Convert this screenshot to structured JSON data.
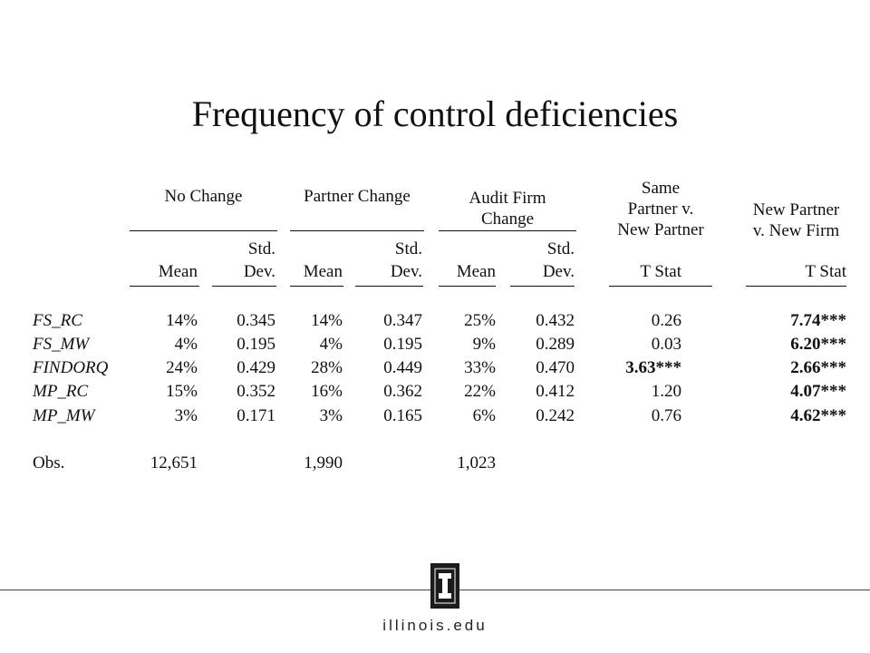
{
  "slide": {
    "title": "Frequency of control deficiencies"
  },
  "table": {
    "groups": [
      {
        "lines": [
          "No Change"
        ]
      },
      {
        "lines": [
          "Partner Change"
        ]
      },
      {
        "lines": [
          "Audit Firm",
          "Change"
        ]
      },
      {
        "lines": [
          "Same",
          "Partner v.",
          "New Partner"
        ]
      },
      {
        "lines": [
          "New Partner",
          "v. New Firm"
        ]
      }
    ],
    "columns": [
      {
        "lines": [
          "",
          "Mean"
        ]
      },
      {
        "lines": [
          "Std.",
          "Dev."
        ]
      },
      {
        "lines": [
          "",
          "Mean"
        ]
      },
      {
        "lines": [
          "Std.",
          "Dev."
        ]
      },
      {
        "lines": [
          "",
          "Mean"
        ]
      },
      {
        "lines": [
          "Std.",
          "Dev."
        ]
      },
      {
        "lines": [
          "",
          "T Stat"
        ]
      },
      {
        "lines": [
          "",
          "T Stat"
        ]
      }
    ],
    "rows": [
      {
        "label": "FS_RC",
        "cells": [
          "14%",
          "0.345",
          "14%",
          "0.347",
          "25%",
          "0.432",
          "0.26",
          "7.74***"
        ],
        "bold": [
          false,
          false,
          false,
          false,
          false,
          false,
          false,
          true
        ]
      },
      {
        "label": "FS_MW",
        "cells": [
          "4%",
          "0.195",
          "4%",
          "0.195",
          "9%",
          "0.289",
          "0.03",
          "6.20***"
        ],
        "bold": [
          false,
          false,
          false,
          false,
          false,
          false,
          false,
          true
        ]
      },
      {
        "label": "FINDORQ",
        "cells": [
          "24%",
          "0.429",
          "28%",
          "0.449",
          "33%",
          "0.470",
          "3.63***",
          "2.66***"
        ],
        "bold": [
          false,
          false,
          false,
          false,
          false,
          false,
          true,
          true
        ]
      },
      {
        "label": "MP_RC",
        "cells": [
          "15%",
          "0.352",
          "16%",
          "0.362",
          "22%",
          "0.412",
          "1.20",
          "4.07***"
        ],
        "bold": [
          false,
          false,
          false,
          false,
          false,
          false,
          false,
          true
        ]
      },
      {
        "label": "MP_MW",
        "cells": [
          "3%",
          "0.171",
          "3%",
          "0.165",
          "6%",
          "0.242",
          "0.76",
          "4.62***"
        ],
        "bold": [
          false,
          false,
          false,
          false,
          false,
          false,
          false,
          true
        ]
      }
    ],
    "obs": {
      "label": "Obs.",
      "cells": [
        "12,651",
        "",
        "1,990",
        "",
        "1,023",
        "",
        "",
        ""
      ]
    }
  },
  "footer": {
    "logo_letter": "I",
    "domain": "illinois.edu"
  }
}
